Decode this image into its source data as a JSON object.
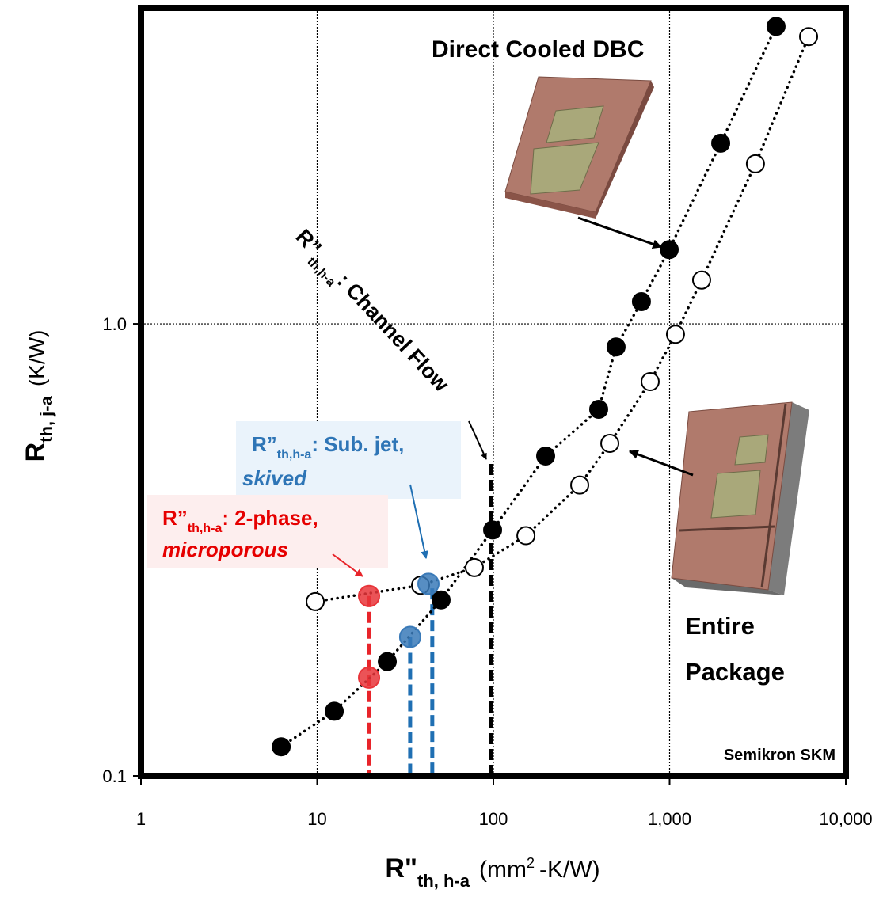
{
  "chart_data": {
    "type": "scatter",
    "x_label": {
      "main": "R\"",
      "sub": "th, h-a",
      "unit": "(mm",
      "sup": "2",
      "unit_end": "-K/W)"
    },
    "y_label": {
      "main": "R",
      "sub": "th, j-a",
      "unit": "(K/W)"
    },
    "xlim": [
      1,
      10000
    ],
    "ylim": [
      0.1,
      5
    ],
    "xticks": [
      1,
      10,
      100,
      {
        "value": 1000,
        "label": "1,000"
      },
      {
        "value": 10000,
        "label": "10,000"
      }
    ],
    "yticks": [
      0.1,
      {
        "value": 1,
        "label": "1.0"
      }
    ],
    "log_x": true,
    "log_y": true,
    "grid": true,
    "series": [
      {
        "name": "Direct Cooled DBC",
        "color": "#000000",
        "fill": "#000000",
        "x": [
          6.25,
          12.5,
          25,
          50.5,
          99,
          198,
          396,
          497,
          692,
          995,
          1950,
          4020
        ],
        "values": [
          0.116,
          0.139,
          0.179,
          0.245,
          0.35,
          0.51,
          0.647,
          0.889,
          1.12,
          1.46,
          2.51,
          4.55
        ]
      },
      {
        "name": "Entire Package",
        "color": "#000000",
        "fill": "#ffffff",
        "x": [
          9.75,
          38.6,
          78,
          153,
          309,
          458,
          776,
          1080,
          1520,
          3070,
          6150
        ],
        "values": [
          0.243,
          0.264,
          0.289,
          0.34,
          0.44,
          0.544,
          0.745,
          0.948,
          1.25,
          2.26,
          4.32
        ]
      }
    ],
    "highlights": [
      {
        "x": 19.7,
        "y": 0.25,
        "color": "#e8353a"
      },
      {
        "x": 19.7,
        "y": 0.165,
        "color": "#e8353a"
      },
      {
        "x": 33.7,
        "y": 0.203,
        "color": "#3a7ab8"
      },
      {
        "x": 42.8,
        "y": 0.266,
        "color": "#3a7ab8"
      }
    ],
    "drop_lines": [
      {
        "x": 19.7,
        "y": 0.25,
        "color": "#e8242a"
      },
      {
        "x": 33.7,
        "y": 0.203,
        "color": "#1f6fb3"
      },
      {
        "x": 45,
        "y": 0.26,
        "color": "#1f6fb3"
      },
      {
        "x": 97,
        "y": 0.49,
        "color": "#000000"
      }
    ],
    "annotations": {
      "channel": {
        "r": "R”",
        "sub": "th,h-a",
        "text": ": Channel Flow"
      },
      "subjet": {
        "r": "R”",
        "sub": "th,h-a",
        "text": ": Sub. jet,",
        "line2": "skived"
      },
      "twophase": {
        "r": "R”",
        "sub": "th,h-a",
        "text": ": 2-phase,",
        "line2": "microporous"
      },
      "note": "Semikron SKM"
    }
  }
}
